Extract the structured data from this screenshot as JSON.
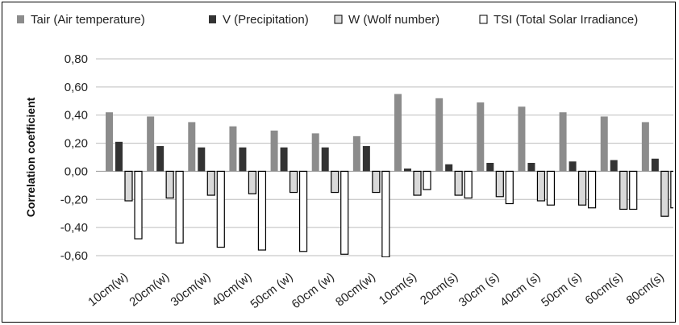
{
  "chart_data": {
    "type": "bar",
    "ylabel": "Correlation coefficient",
    "xlabel": "",
    "title": "",
    "ylim": [
      -0.6,
      0.8
    ],
    "yticks": [
      "0,80",
      "0,60",
      "0,40",
      "0,20",
      "0,00",
      "-0,20",
      "-0,40",
      "-0,60"
    ],
    "ytick_values": [
      0.8,
      0.6,
      0.4,
      0.2,
      0.0,
      -0.2,
      -0.4,
      -0.6
    ],
    "grid": "horizontal",
    "legend_position": "top",
    "categories": [
      "10cm(w)",
      "20cm(w)",
      "30cm(w)",
      "40cm(w)",
      "50cm (w)",
      "60cm (w)",
      "80cm(w)",
      "10cm(s)",
      "20cm(s)",
      "30cm (s)",
      "40cm (s)",
      "50cm (s)",
      "60cm(s)",
      "80cm(s)"
    ],
    "series": [
      {
        "name": "Tair (Air temperature)",
        "color": "#8c8c8c",
        "values": [
          0.42,
          0.39,
          0.35,
          0.32,
          0.29,
          0.27,
          0.25,
          0.55,
          0.52,
          0.49,
          0.46,
          0.42,
          0.39,
          0.35
        ]
      },
      {
        "name": "V (Precipitation)",
        "color": "#333333",
        "values": [
          0.21,
          0.18,
          0.17,
          0.17,
          0.17,
          0.17,
          0.18,
          0.02,
          0.05,
          0.06,
          0.06,
          0.07,
          0.08,
          0.09
        ]
      },
      {
        "name": "W (Wolf number)",
        "color": "#d9d9d9",
        "values": [
          -0.21,
          -0.19,
          -0.17,
          -0.16,
          -0.15,
          -0.15,
          -0.15,
          -0.17,
          -0.17,
          -0.18,
          -0.21,
          -0.24,
          -0.27,
          -0.32
        ]
      },
      {
        "name": "TSI (Total Solar Irradiance)",
        "color": "#ffffff",
        "values": [
          -0.48,
          -0.51,
          -0.54,
          -0.56,
          -0.57,
          -0.59,
          -0.61,
          -0.13,
          -0.19,
          -0.23,
          -0.24,
          -0.26,
          -0.27,
          -0.26
        ]
      }
    ]
  }
}
